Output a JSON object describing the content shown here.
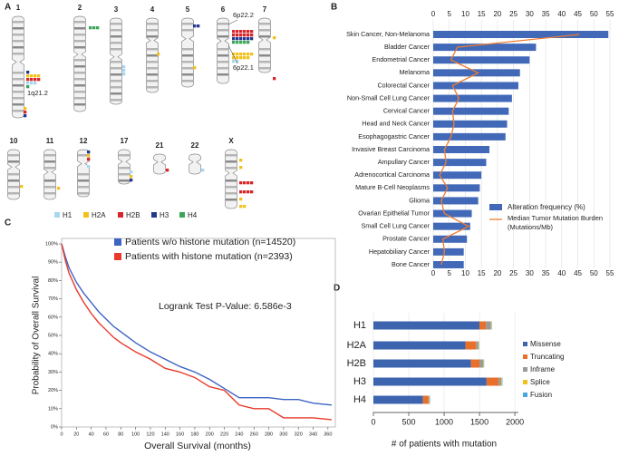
{
  "panel_labels": [
    "A",
    "B",
    "C",
    "D"
  ],
  "ideogram": {
    "chromosomes": [
      "1",
      "2",
      "3",
      "4",
      "5",
      "6",
      "7",
      "10",
      "11",
      "12",
      "17",
      "21",
      "22",
      "X"
    ],
    "annotations": [
      "6p22.2",
      "6p22.1",
      "1q21.2"
    ],
    "legend": [
      "H1",
      "H2A",
      "H2B",
      "H3",
      "H4"
    ],
    "legend_colors": [
      "#a8d8ef",
      "#f2c11d",
      "#d8252a",
      "#23378f",
      "#3aa655"
    ]
  },
  "chart_data": [
    {
      "type": "hbar_line",
      "categories": [
        "Skin Cancer, Non-Melanoma",
        "Bladder Cancer",
        "Endometrial Cancer",
        "Melanoma",
        "Colorectal Cancer",
        "Non-Small Cell Lung Cancer",
        "Cervical Cancer",
        "Head and Neck Cancer",
        "Esophagogastric Cancer",
        "Invasive Breast Carcinoma",
        "Ampullary Cancer",
        "Adrenocortical Carcinoma",
        "Mature B-Cell Neoplasms",
        "Glioma",
        "Ovarian Epithelial Tumor",
        "Small Cell Lung Cancer",
        "Prostate Cancer",
        "Hepatobiliary Cancer",
        "Bone Cancer"
      ],
      "series": [
        {
          "name": "Alteration frequency (%)",
          "color": "#4169b8",
          "values": [
            54.5,
            32,
            30,
            27,
            26.5,
            24.5,
            23.5,
            23,
            22.5,
            17.5,
            16.5,
            15,
            14.5,
            14,
            12,
            11.5,
            10.5,
            9.5,
            9.5
          ]
        },
        {
          "name": "Median Tumor Mutation Burden (Mutations/Mb)",
          "color": "#ee7d31",
          "values": [
            45.5,
            7.5,
            5.5,
            14,
            6,
            8,
            6,
            6.5,
            5.5,
            3.5,
            4,
            2,
            4.5,
            2.5,
            3.5,
            11,
            3,
            3.5,
            2.5
          ]
        }
      ],
      "xlim": [
        0,
        55
      ],
      "xticks": [
        0,
        5,
        10,
        15,
        20,
        25,
        30,
        35,
        40,
        45,
        50,
        55
      ],
      "grid": true
    },
    {
      "type": "survival",
      "xlabel": "Overall Survival (months)",
      "ylabel": "Probability of Overall Survival",
      "annotation": "Logrank Test P-Value: 6.586e-3",
      "series": [
        {
          "name": "Patients w/o histone mutation (n=14520)",
          "color": "#3d64c4",
          "x": [
            0,
            5,
            10,
            20,
            30,
            40,
            50,
            60,
            70,
            80,
            100,
            120,
            140,
            160,
            180,
            200,
            220,
            240,
            260,
            280,
            300,
            320,
            340,
            365
          ],
          "values": [
            100,
            93,
            87,
            79,
            73,
            68,
            63,
            59,
            55,
            52,
            46,
            41,
            37,
            33,
            30,
            26,
            21,
            16,
            16,
            16,
            15,
            15,
            13,
            12
          ]
        },
        {
          "name": "Patients with histone mutation (n=2393)",
          "color": "#e8392b",
          "x": [
            0,
            5,
            10,
            20,
            30,
            40,
            50,
            60,
            70,
            80,
            100,
            120,
            140,
            160,
            180,
            200,
            220,
            240,
            260,
            280,
            300,
            320,
            340,
            365
          ],
          "values": [
            100,
            91,
            84,
            75,
            68,
            62,
            57,
            53,
            49,
            46,
            41,
            37,
            32,
            30,
            27,
            22,
            20,
            12,
            10,
            10,
            5,
            5,
            5,
            4
          ]
        }
      ],
      "xlim": [
        0,
        370
      ],
      "xticks": [
        0,
        20,
        40,
        60,
        80,
        100,
        120,
        140,
        160,
        180,
        200,
        220,
        240,
        260,
        280,
        300,
        320,
        340,
        360
      ],
      "ylim": [
        0,
        100
      ],
      "yticks": [
        {
          "value": 0,
          "label": "0%"
        },
        {
          "value": 10,
          "label": "10%"
        },
        {
          "value": 20,
          "label": "20%"
        },
        {
          "value": 30,
          "label": "30%"
        },
        {
          "value": 40,
          "label": "40%"
        },
        {
          "value": 50,
          "label": "50%"
        },
        {
          "value": 60,
          "label": "60%"
        },
        {
          "value": 70,
          "label": "70%"
        },
        {
          "value": 80,
          "label": "80%"
        },
        {
          "value": 90,
          "label": "90%"
        },
        {
          "value": 100,
          "label": "100%"
        }
      ]
    },
    {
      "type": "stacked_hbar",
      "xlabel": "# of patients with mutation",
      "categories": [
        "H1",
        "H2A",
        "H2B",
        "H3",
        "H4"
      ],
      "series": [
        {
          "name": "Missense",
          "color": "#3d64ae",
          "values": [
            1500,
            1300,
            1380,
            1600,
            700
          ]
        },
        {
          "name": "Truncating",
          "color": "#e8702a",
          "values": [
            90,
            150,
            120,
            170,
            80
          ]
        },
        {
          "name": "Inframe",
          "color": "#999999",
          "values": [
            70,
            30,
            50,
            40,
            10
          ]
        },
        {
          "name": "Splice",
          "color": "#f2c11d",
          "values": [
            10,
            10,
            10,
            10,
            5
          ]
        },
        {
          "name": "Fusion",
          "color": "#4aa6de",
          "values": [
            5,
            5,
            5,
            5,
            5
          ]
        }
      ],
      "xlim": [
        0,
        2050
      ],
      "xticks": [
        0,
        500,
        1000,
        1500,
        2000
      ],
      "grid": true
    }
  ]
}
